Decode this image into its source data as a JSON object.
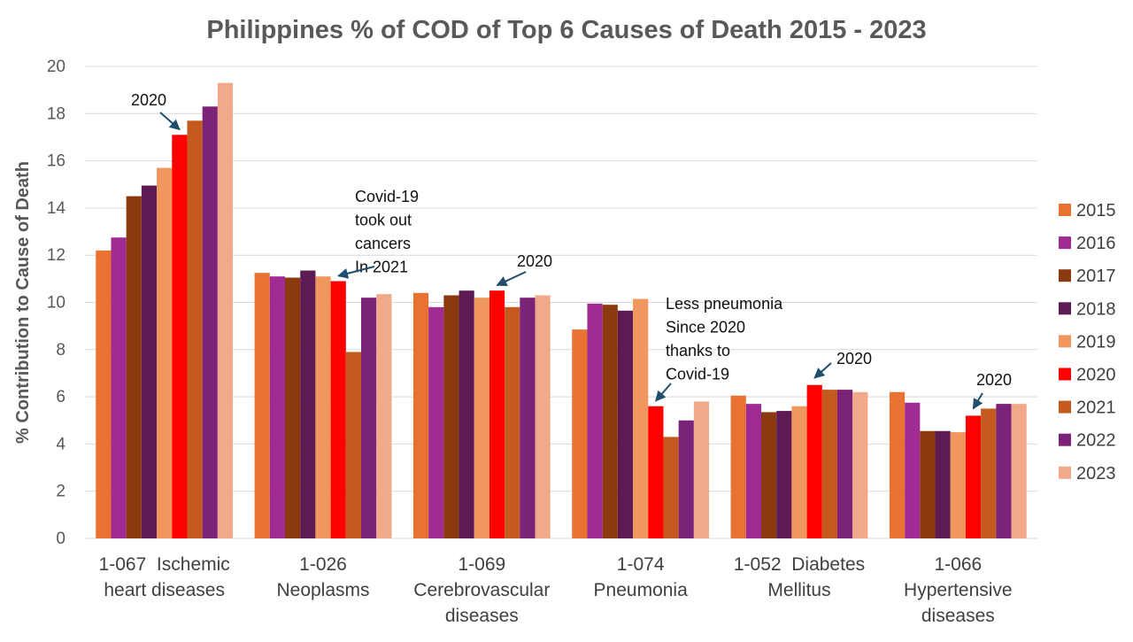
{
  "chart_data": {
    "type": "bar",
    "title": "Philippines % of COD of Top 6 Causes of Death 2015 - 2023",
    "xlabel": "",
    "ylabel": "% Contribution to Cause of Death",
    "ylim": [
      0,
      20
    ],
    "yticks": [
      0,
      2,
      4,
      6,
      8,
      10,
      12,
      14,
      16,
      18,
      20
    ],
    "grid": true,
    "legend_position": "right",
    "categories": [
      [
        "1-067  Ischemic",
        "heart diseases"
      ],
      [
        "1-026",
        "Neoplasms"
      ],
      [
        "1-069",
        "Cerebrovascular",
        "diseases"
      ],
      [
        "1-074",
        "Pneumonia"
      ],
      [
        "1-052  Diabetes",
        "Mellitus"
      ],
      [
        "1-066",
        "Hypertensive",
        "diseases"
      ]
    ],
    "series": [
      {
        "name": "2015",
        "color": "#E97132",
        "values": [
          12.2,
          11.25,
          10.4,
          8.85,
          6.05,
          6.2
        ]
      },
      {
        "name": "2016",
        "color": "#A02B93",
        "values": [
          12.75,
          11.1,
          9.8,
          9.95,
          5.7,
          5.75
        ]
      },
      {
        "name": "2017",
        "color": "#8B3A10",
        "values": [
          14.5,
          11.05,
          10.3,
          9.9,
          5.35,
          4.55
        ]
      },
      {
        "name": "2018",
        "color": "#5E1A52",
        "values": [
          14.95,
          11.35,
          10.5,
          9.65,
          5.4,
          4.55
        ]
      },
      {
        "name": "2019",
        "color": "#F0965F",
        "values": [
          15.7,
          11.1,
          10.2,
          10.15,
          5.6,
          4.5
        ]
      },
      {
        "name": "2020",
        "color": "#FF0000",
        "values": [
          17.1,
          10.9,
          10.5,
          5.6,
          6.5,
          5.2
        ]
      },
      {
        "name": "2021",
        "color": "#C55A1E",
        "values": [
          17.7,
          7.9,
          9.8,
          4.3,
          6.3,
          5.5
        ]
      },
      {
        "name": "2022",
        "color": "#7B2279",
        "values": [
          18.3,
          10.2,
          10.2,
          5.0,
          6.3,
          5.7
        ]
      },
      {
        "name": "2023",
        "color": "#F2A98A",
        "values": [
          19.3,
          10.35,
          10.3,
          5.8,
          6.2,
          5.7
        ]
      }
    ],
    "annotations": [
      {
        "lines": [
          "2020"
        ],
        "target": {
          "category": 0,
          "series": 5
        }
      },
      {
        "lines": [
          "Covid-19",
          "took out",
          "cancers",
          "In 2021"
        ],
        "target": {
          "category": 1,
          "series": 5
        }
      },
      {
        "lines": [
          "2020"
        ],
        "target": {
          "category": 2,
          "series": 5
        }
      },
      {
        "lines": [
          "Less pneumonia",
          "Since 2020",
          "thanks to",
          "Covid-19"
        ],
        "target": {
          "category": 3,
          "series": 5
        }
      },
      {
        "lines": [
          "2020"
        ],
        "target": {
          "category": 4,
          "series": 5
        }
      },
      {
        "lines": [
          "2020"
        ],
        "target": {
          "category": 5,
          "series": 5
        }
      }
    ]
  }
}
